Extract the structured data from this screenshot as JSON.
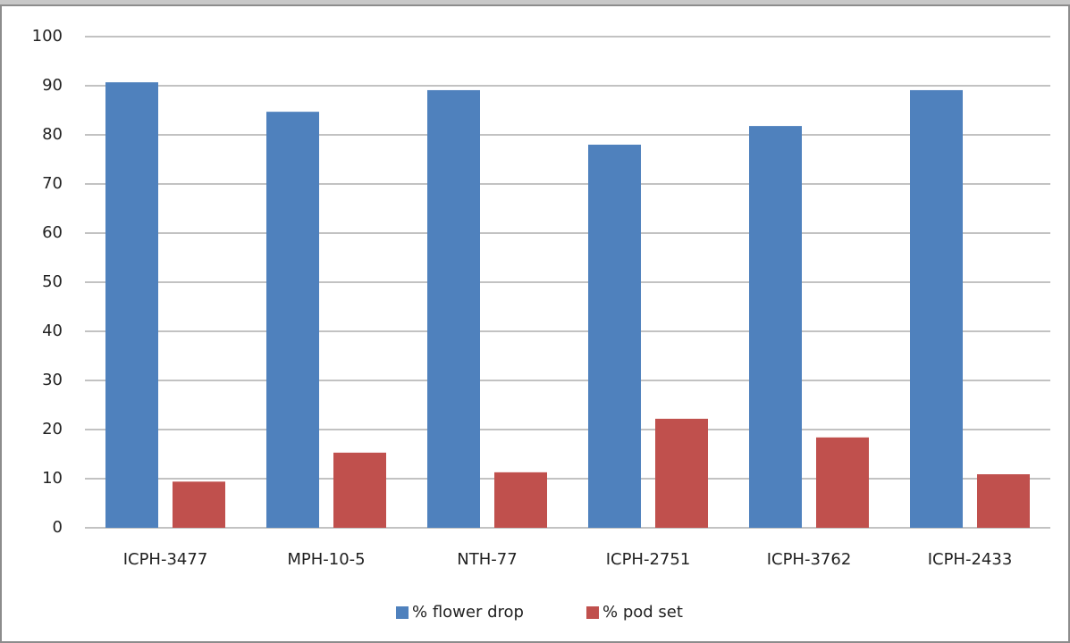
{
  "chart_data": {
    "type": "bar",
    "categories": [
      "ICPH-3477",
      "MPH-10-5",
      "NTH-77",
      "ICPH-2751",
      "ICPH-3762",
      "ICPH-2433"
    ],
    "series": [
      {
        "name": "% flower drop",
        "color": "#4f81bd",
        "values": [
          90.7,
          84.7,
          89.1,
          78,
          81.8,
          89.1
        ]
      },
      {
        "name": "% pod set",
        "color": "#c0504d",
        "values": [
          9.4,
          15.3,
          11.3,
          22.2,
          18.4,
          10.9
        ]
      }
    ],
    "ylim": [
      0,
      100
    ],
    "yticks": [
      0,
      10,
      20,
      30,
      40,
      50,
      60,
      70,
      80,
      90,
      100
    ],
    "grid": true,
    "legend": "bottom"
  }
}
